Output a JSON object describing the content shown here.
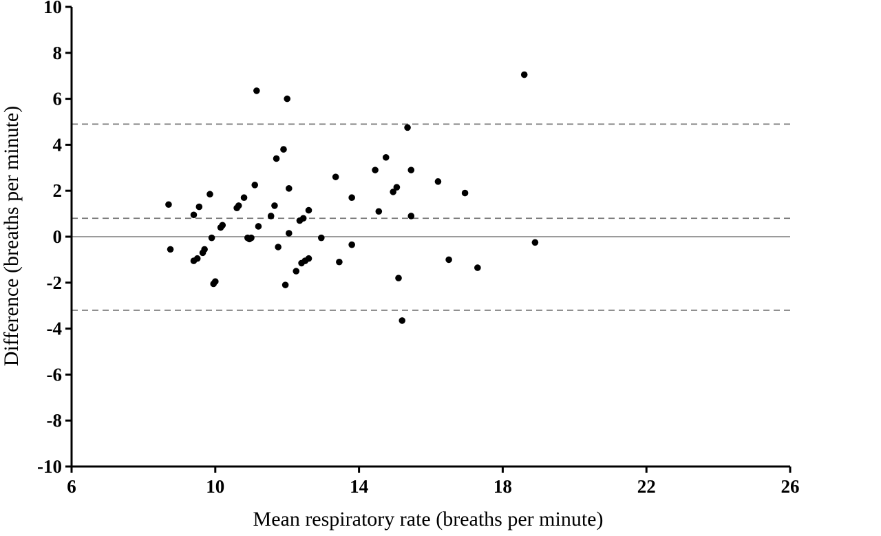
{
  "chart_data": {
    "type": "scatter",
    "title": "",
    "xlabel": "Mean respiratory rate (breaths per minute)",
    "ylabel": "Difference (breaths per minute)",
    "xlim": [
      6,
      26
    ],
    "ylim": [
      -10,
      10
    ],
    "x_ticks": [
      6,
      10,
      14,
      18,
      22,
      26
    ],
    "y_ticks": [
      -10,
      -8,
      -6,
      -4,
      -2,
      0,
      2,
      4,
      6,
      8,
      10
    ],
    "x_tick_labels": [
      "6",
      "10",
      "14",
      "18",
      "22",
      "26"
    ],
    "y_tick_labels": [
      "-10",
      "-8",
      "-6",
      "-4",
      "-2",
      "0",
      "2",
      "4",
      "6",
      "8",
      "10"
    ],
    "grid": false,
    "reference_lines": [
      {
        "y": 0,
        "style": "solid"
      },
      {
        "y": 0.8,
        "style": "dashed"
      },
      {
        "y": 4.9,
        "style": "dashed"
      },
      {
        "y": -3.2,
        "style": "dashed"
      }
    ],
    "points": [
      {
        "x": 8.7,
        "y": 1.4
      },
      {
        "x": 8.75,
        "y": -0.55
      },
      {
        "x": 9.4,
        "y": 0.95
      },
      {
        "x": 9.4,
        "y": -1.05
      },
      {
        "x": 9.5,
        "y": -0.95
      },
      {
        "x": 9.55,
        "y": 1.3
      },
      {
        "x": 9.65,
        "y": -0.7
      },
      {
        "x": 9.7,
        "y": -0.55
      },
      {
        "x": 9.85,
        "y": 1.85
      },
      {
        "x": 9.9,
        "y": -0.05
      },
      {
        "x": 9.95,
        "y": -2.05
      },
      {
        "x": 10.0,
        "y": -1.95
      },
      {
        "x": 10.15,
        "y": 0.4
      },
      {
        "x": 10.2,
        "y": 0.5
      },
      {
        "x": 10.6,
        "y": 1.25
      },
      {
        "x": 10.65,
        "y": 1.35
      },
      {
        "x": 10.8,
        "y": 1.7
      },
      {
        "x": 10.9,
        "y": -0.05
      },
      {
        "x": 10.95,
        "y": -0.1
      },
      {
        "x": 11.0,
        "y": -0.05
      },
      {
        "x": 11.1,
        "y": 2.25
      },
      {
        "x": 11.15,
        "y": 6.35
      },
      {
        "x": 11.2,
        "y": 0.45
      },
      {
        "x": 11.55,
        "y": 0.9
      },
      {
        "x": 11.65,
        "y": 1.35
      },
      {
        "x": 11.7,
        "y": 3.4
      },
      {
        "x": 11.75,
        "y": -0.45
      },
      {
        "x": 11.9,
        "y": 3.8
      },
      {
        "x": 11.95,
        "y": -2.1
      },
      {
        "x": 12.0,
        "y": 6.0
      },
      {
        "x": 12.05,
        "y": 2.1
      },
      {
        "x": 12.05,
        "y": 0.15
      },
      {
        "x": 12.25,
        "y": -1.5
      },
      {
        "x": 12.35,
        "y": 0.7
      },
      {
        "x": 12.4,
        "y": -1.15
      },
      {
        "x": 12.45,
        "y": 0.8
      },
      {
        "x": 12.5,
        "y": -1.05
      },
      {
        "x": 12.6,
        "y": 1.15
      },
      {
        "x": 12.6,
        "y": -0.95
      },
      {
        "x": 12.95,
        "y": -0.05
      },
      {
        "x": 13.35,
        "y": 2.6
      },
      {
        "x": 13.45,
        "y": -1.1
      },
      {
        "x": 13.8,
        "y": 1.7
      },
      {
        "x": 13.8,
        "y": -0.35
      },
      {
        "x": 14.45,
        "y": 2.9
      },
      {
        "x": 14.55,
        "y": 1.1
      },
      {
        "x": 14.75,
        "y": 3.45
      },
      {
        "x": 14.95,
        "y": 1.95
      },
      {
        "x": 15.05,
        "y": 2.15
      },
      {
        "x": 15.1,
        "y": -1.8
      },
      {
        "x": 15.2,
        "y": -3.65
      },
      {
        "x": 15.35,
        "y": 4.75
      },
      {
        "x": 15.45,
        "y": 2.9
      },
      {
        "x": 15.45,
        "y": 0.9
      },
      {
        "x": 16.2,
        "y": 2.4
      },
      {
        "x": 16.5,
        "y": -1.0
      },
      {
        "x": 16.95,
        "y": 1.9
      },
      {
        "x": 17.3,
        "y": -1.35
      },
      {
        "x": 18.6,
        "y": 7.05
      },
      {
        "x": 18.9,
        "y": -0.25
      }
    ]
  }
}
